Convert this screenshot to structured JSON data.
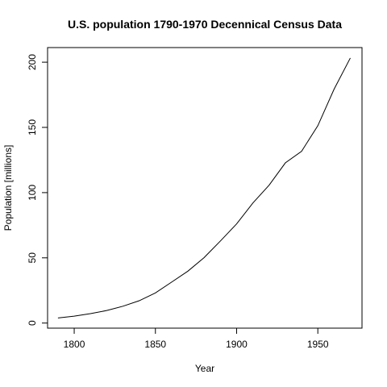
{
  "chart_data": {
    "type": "line",
    "title": "U.S. population 1790-1970 Decennical Census Data",
    "xlabel": "Year",
    "ylabel": "Population [millions]",
    "xlim": [
      1783.6,
      1977.2
    ],
    "ylim": [
      -3.9,
      211.2
    ],
    "x_ticks": [
      1800,
      1850,
      1900,
      1950
    ],
    "y_ticks": [
      0,
      50,
      100,
      150,
      200
    ],
    "grid": false,
    "legend": "none",
    "line_color": "#000000",
    "series": [
      {
        "x": [
          1790,
          1800,
          1810,
          1820,
          1830,
          1840,
          1850,
          1860,
          1870,
          1880,
          1890,
          1900,
          1910,
          1920,
          1930,
          1940,
          1950,
          1960,
          1970
        ],
        "values": [
          3.9,
          5.3,
          7.2,
          9.6,
          12.9,
          17.1,
          23.1,
          31.4,
          39.8,
          50.2,
          62.9,
          76.0,
          92.0,
          105.7,
          122.8,
          131.7,
          151.3,
          179.3,
          203.2
        ]
      }
    ]
  }
}
